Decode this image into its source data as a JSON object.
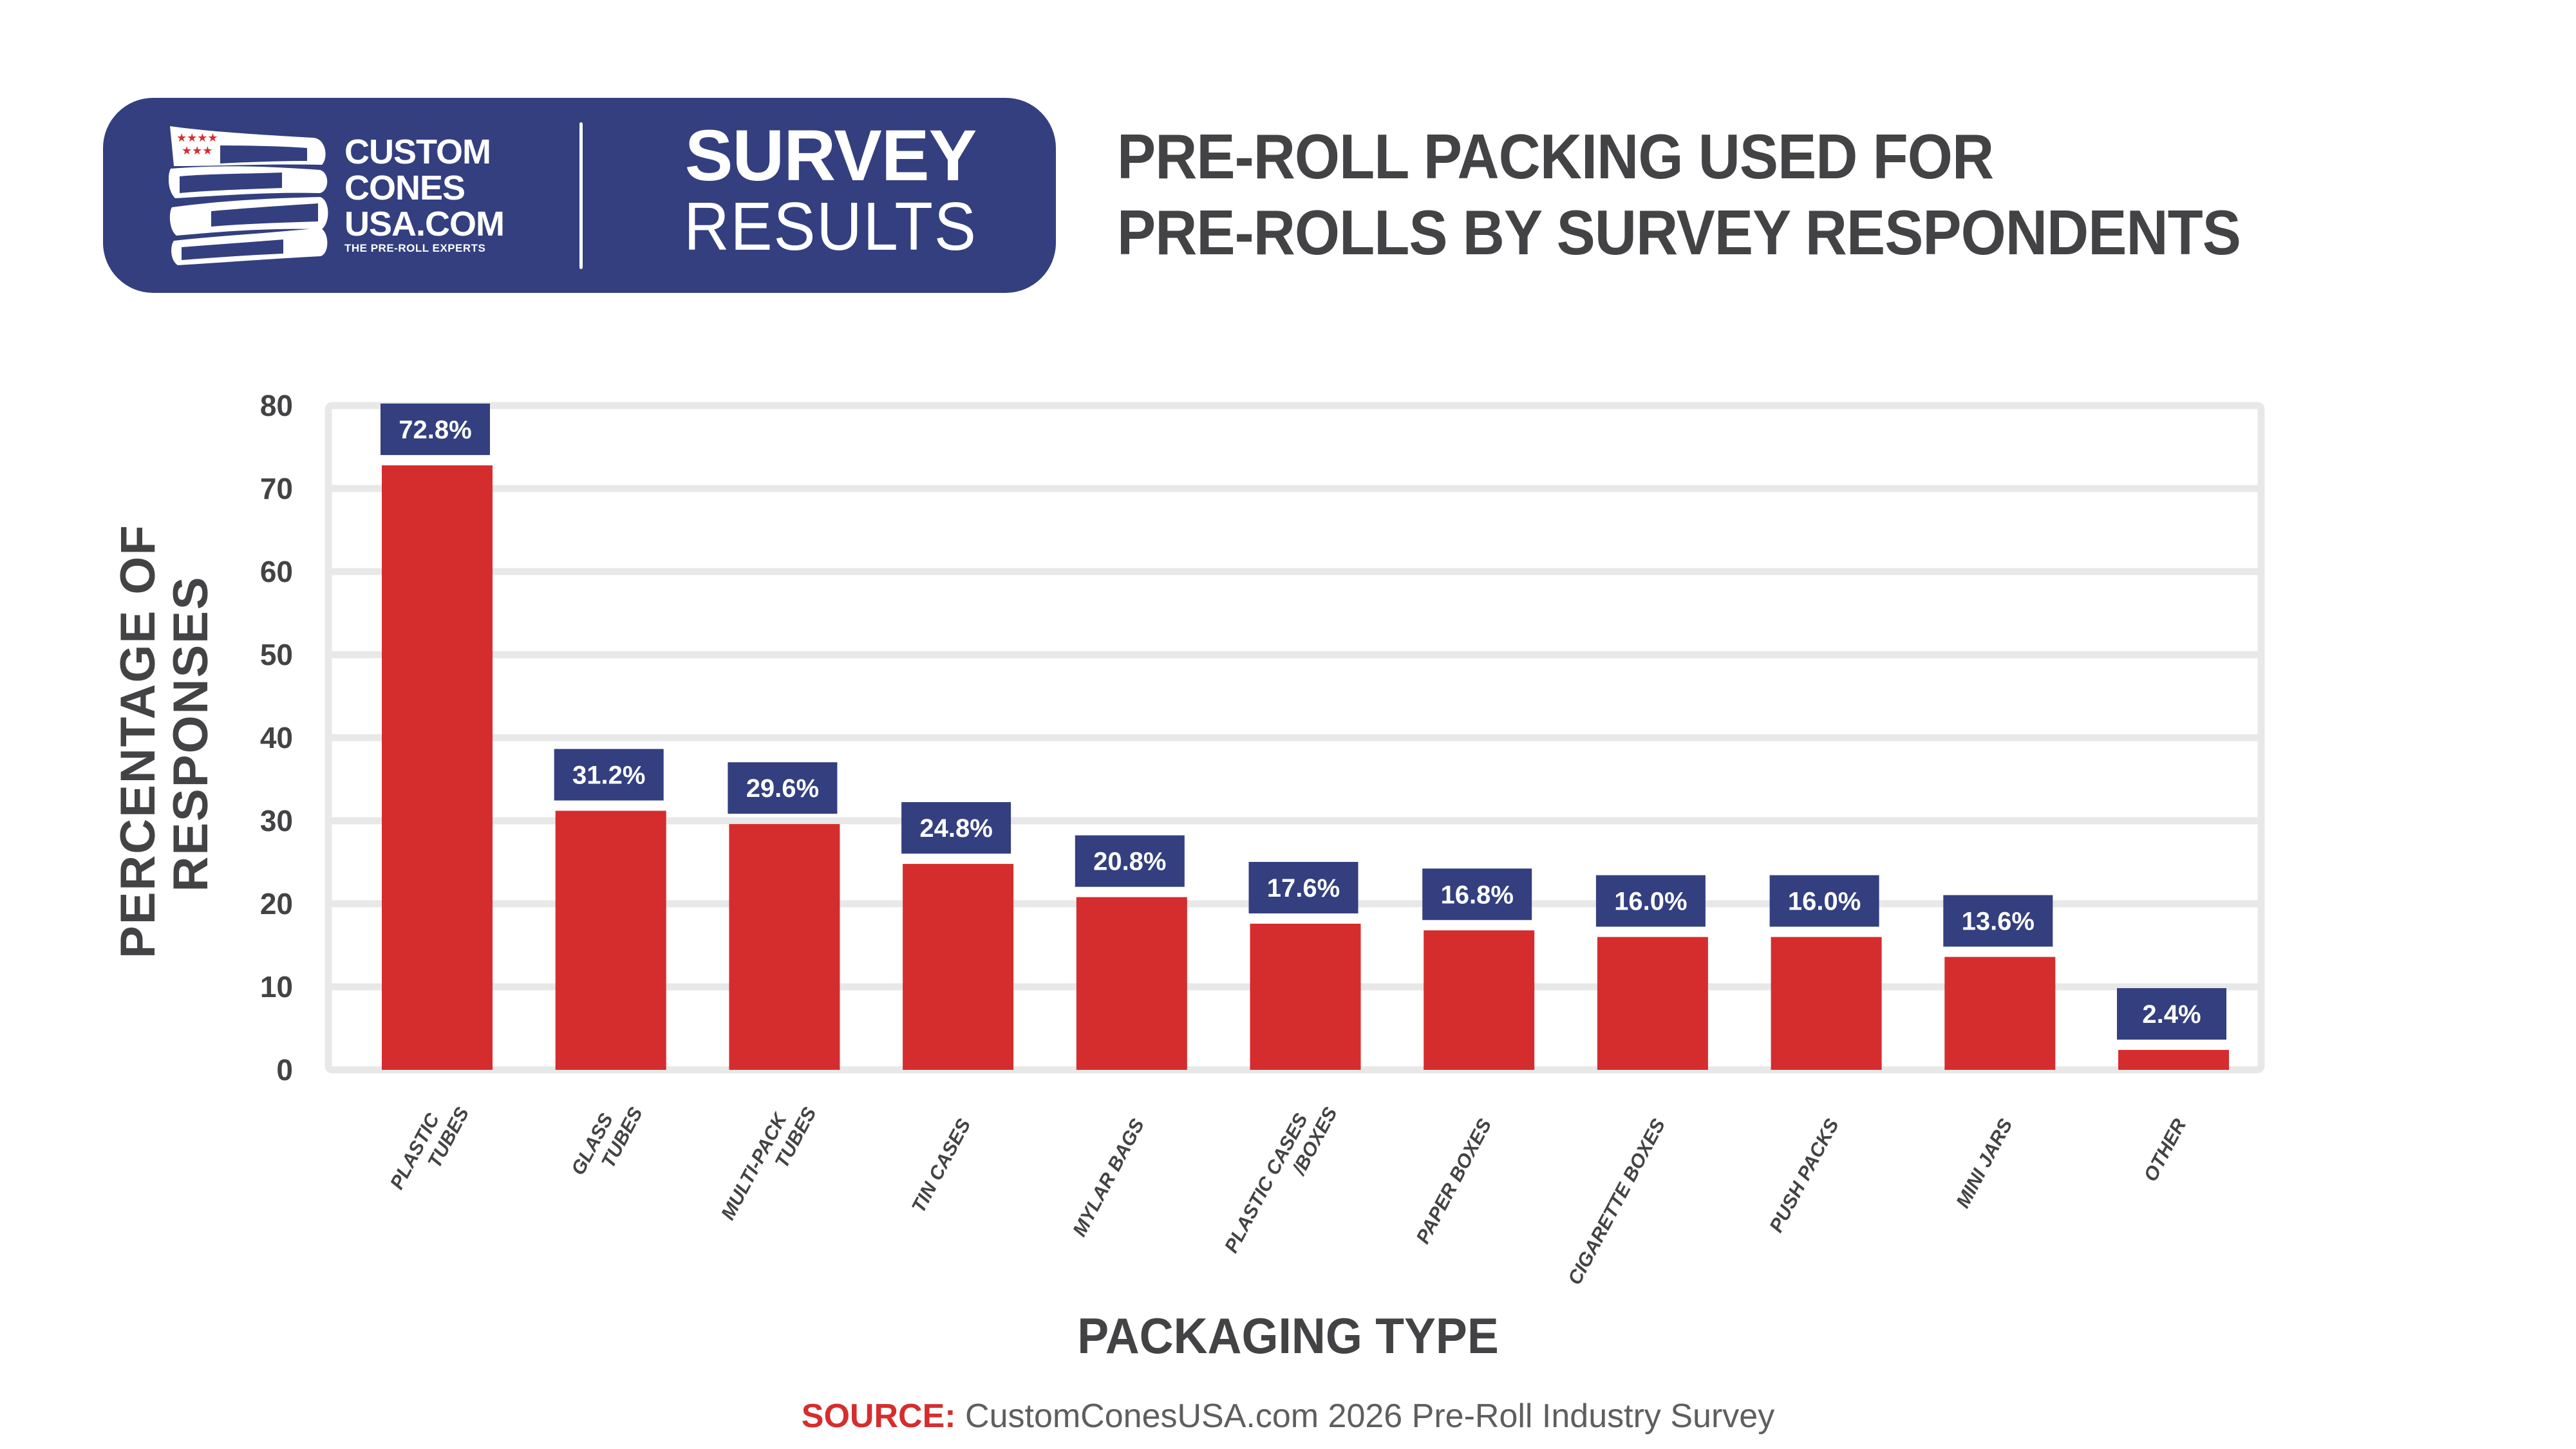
{
  "branding": {
    "logo_lines": [
      "CUSTOM",
      "CONES",
      "USA.COM"
    ],
    "tagline": "THE PRE-ROLL EXPERTS",
    "survey_word": "SURVEY",
    "results_word": "RESULTS",
    "icon": "rolled-flag-tubes-icon"
  },
  "header": {
    "title_lines": [
      "PRE-ROLL PACKING USED FOR",
      "PRE-ROLLS BY SURVEY RESPONDENTS"
    ]
  },
  "colors": {
    "navy": "#333f7f",
    "bar_red": "#d52d2e",
    "grid": "#e8e8e8",
    "text_dark": "#434345"
  },
  "chart_data": {
    "type": "bar",
    "title": "PRE-ROLL PACKING USED FOR PRE-ROLLS BY SURVEY RESPONDENTS",
    "xlabel": "PACKAGING TYPE",
    "ylabel": "PERCENTAGE OF RESPONSES",
    "ylabel_lines": [
      "PERCENTAGE OF",
      "RESPONSES"
    ],
    "ylim": [
      0,
      80
    ],
    "yticks": [
      0,
      10,
      20,
      30,
      40,
      50,
      60,
      70,
      80
    ],
    "grid": true,
    "categories": [
      "PLASTIC TUBES",
      "GLASS TUBES",
      "MULTI-PACK TUBES",
      "TIN CASES",
      "MYLAR BAGS",
      "PLASTIC CASES /BOXES",
      "PAPER BOXES",
      "CIGARETTE BOXES",
      "PUSH PACKS",
      "MINI JARS",
      "OTHER"
    ],
    "category_lines": [
      [
        "PLASTIC",
        "TUBES"
      ],
      [
        "GLASS",
        "TUBES"
      ],
      [
        "MULTI-PACK",
        "TUBES"
      ],
      [
        "TIN CASES"
      ],
      [
        "MYLAR BAGS"
      ],
      [
        "PLASTIC CASES",
        "/BOXES"
      ],
      [
        "PAPER BOXES"
      ],
      [
        "CIGARETTE BOXES"
      ],
      [
        "PUSH PACKS"
      ],
      [
        "MINI JARS"
      ],
      [
        "OTHER"
      ]
    ],
    "values": [
      72.8,
      31.2,
      29.6,
      24.8,
      20.8,
      17.6,
      16.8,
      16.0,
      16.0,
      13.6,
      2.4
    ],
    "data_labels": [
      "72.8%",
      "31.2%",
      "29.6%",
      "24.8%",
      "20.8%",
      "17.6%",
      "16.8%",
      "16.0%",
      "16.0%",
      "13.6%",
      "2.4%"
    ],
    "legend": "none"
  },
  "footer": {
    "source_label": "SOURCE:",
    "source_text": " CustomConesUSA.com 2026 Pre-Roll Industry Survey"
  }
}
